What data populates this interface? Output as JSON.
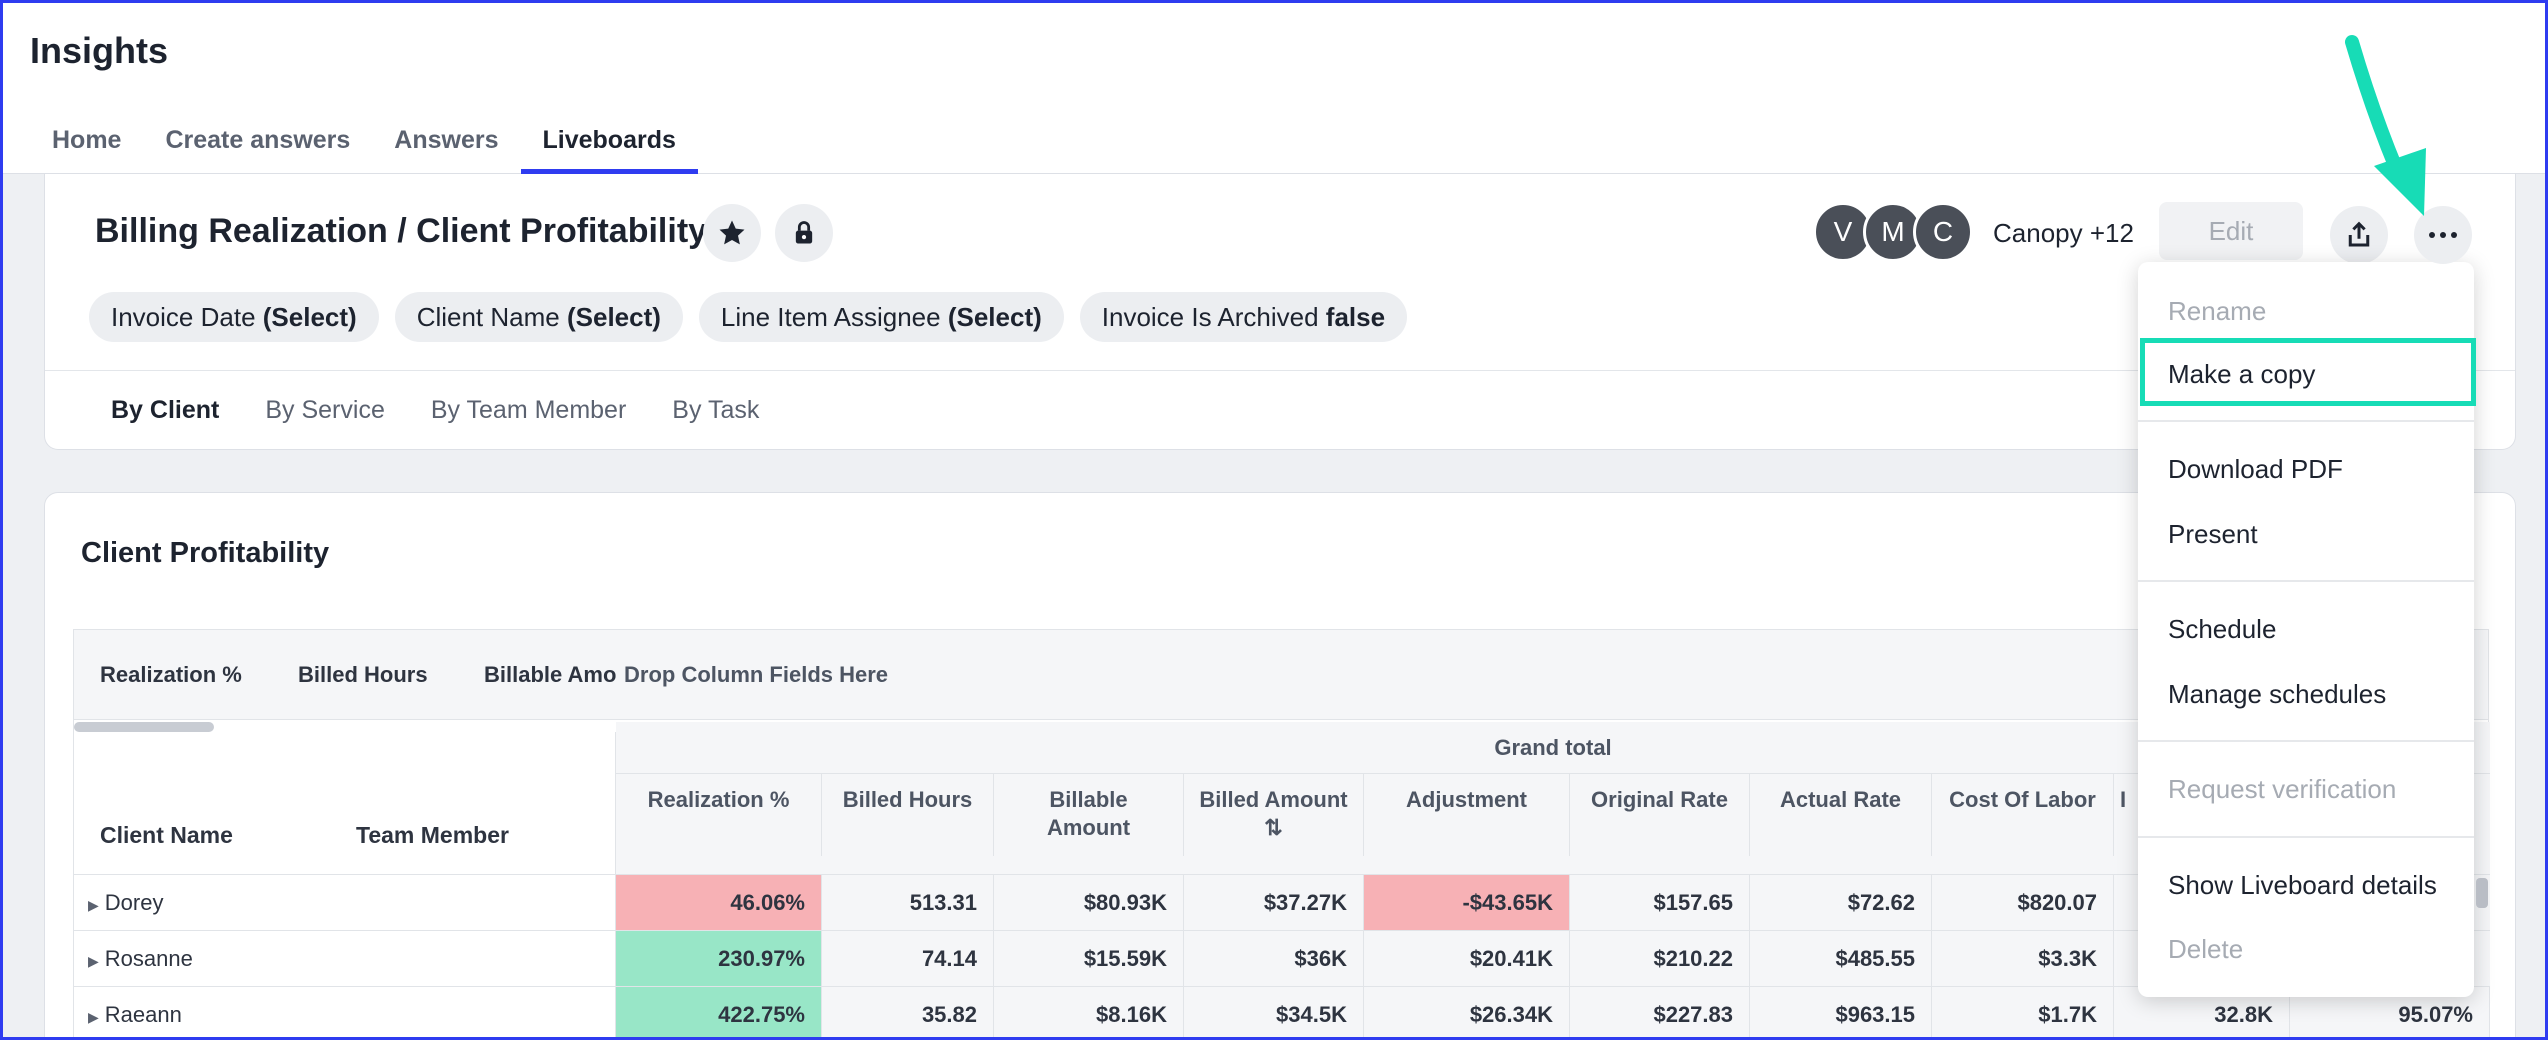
{
  "app": {
    "title": "Insights"
  },
  "nav": {
    "tabs": [
      {
        "label": "Home"
      },
      {
        "label": "Create answers"
      },
      {
        "label": "Answers"
      },
      {
        "label": "Liveboards"
      }
    ],
    "active": "Liveboards"
  },
  "liveboard": {
    "title": "Billing Realization / Client Profitability",
    "filters": [
      {
        "name": "Invoice Date",
        "value": "(Select)"
      },
      {
        "name": "Client Name",
        "value": "(Select)"
      },
      {
        "name": "Line Item Assignee",
        "value": "(Select)"
      },
      {
        "name": "Invoice Is Archived",
        "value": "false"
      }
    ],
    "subtabs": [
      "By Client",
      "By Service",
      "By Team Member",
      "By Task"
    ],
    "active_subtab": "By Client",
    "avatars": [
      "V",
      "M",
      "C"
    ],
    "shared_with": "Canopy +12",
    "edit_label": "Edit"
  },
  "menu": {
    "items": [
      {
        "label": "Rename",
        "disabled": true
      },
      {
        "label": "Make a copy",
        "highlighted": true
      },
      {
        "label": "Download PDF"
      },
      {
        "label": "Present"
      },
      {
        "label": "Schedule"
      },
      {
        "label": "Manage schedules"
      },
      {
        "label": "Request verification",
        "disabled": true
      },
      {
        "label": "Show Liveboard details"
      },
      {
        "label": "Delete",
        "disabled": true
      }
    ]
  },
  "client_profitability": {
    "title": "Client Profitability",
    "drop_fields": [
      "Realization %",
      "Billed Hours",
      "Billable Amo"
    ],
    "drop_hint": "Drop Column Fields Here",
    "row_headers": [
      "Client Name",
      "Team Member"
    ],
    "grand_total": "Grand total",
    "columns": [
      "Realization %",
      "Billed Hours",
      "Billable Amount",
      "Billed Amount ⇅",
      "Adjustment",
      "Original Rate",
      "Actual Rate",
      "Cost Of Labor",
      "I"
    ],
    "rows": [
      {
        "name": "Dorey",
        "values": [
          "46.06%",
          "513.31",
          "$80.93K",
          "$37.27K",
          "-$43.65K",
          "$157.65",
          "$72.62",
          "$820.07"
        ],
        "tail": [
          "",
          ""
        ]
      },
      {
        "name": "Rosanne",
        "values": [
          "230.97%",
          "74.14",
          "$15.59K",
          "$36K",
          "$20.41K",
          "$210.22",
          "$485.55",
          "$3.3K"
        ],
        "tail": [
          "",
          ""
        ]
      },
      {
        "name": "Raeann",
        "values": [
          "422.75%",
          "35.82",
          "$8.16K",
          "$34.5K",
          "$26.34K",
          "$227.83",
          "$963.15",
          "$1.7K"
        ],
        "tail": [
          "32.8K",
          "95.07%"
        ]
      }
    ]
  },
  "colors": {
    "accent": "#2f3cf0",
    "highlight": "#17dcb6",
    "negative_cell": "#f7b1b5",
    "positive_cell": "#98e6c7"
  }
}
